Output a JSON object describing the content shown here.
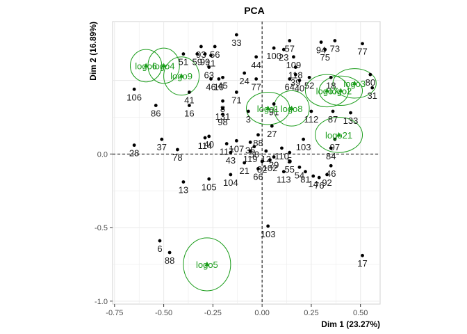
{
  "chart_data": {
    "type": "scatter",
    "title": "PCA",
    "xlabel": "Dim 1 (23.27%)",
    "ylabel": "Dim 2 (16.89%)",
    "xlim": [
      -0.76,
      0.6
    ],
    "ylim": [
      -1.02,
      0.9
    ],
    "x_ticks": [
      -0.75,
      -0.5,
      -0.25,
      0.0,
      0.25,
      0.5
    ],
    "x_tick_labels": [
      "-0.75",
      "-0.50",
      "-0.25",
      "0.00",
      "0.25",
      "0.50"
    ],
    "y_ticks": [
      -1.0,
      -0.5,
      0.0
    ],
    "y_tick_labels": [
      "-1.0",
      "-0.5",
      "0.0"
    ],
    "grid": true,
    "reference_lines": [
      0,
      0
    ],
    "colors": {
      "points": "#000000",
      "groups": "#1a9c1a",
      "grid": "#ebebeb",
      "axis": "#333333"
    },
    "points": [
      {
        "label": "33",
        "x": -0.13,
        "y": 0.81
      },
      {
        "label": "57",
        "x": 0.14,
        "y": 0.77
      },
      {
        "label": "73",
        "x": 0.37,
        "y": 0.77
      },
      {
        "label": "77",
        "x": 0.51,
        "y": 0.75
      },
      {
        "label": "94",
        "x": 0.3,
        "y": 0.76
      },
      {
        "label": "93",
        "x": -0.31,
        "y": 0.73
      },
      {
        "label": "56",
        "x": -0.24,
        "y": 0.73
      },
      {
        "label": "100",
        "x": 0.06,
        "y": 0.72
      },
      {
        "label": "23",
        "x": 0.11,
        "y": 0.71
      },
      {
        "label": "75",
        "x": 0.32,
        "y": 0.71
      },
      {
        "label": "109",
        "x": 0.16,
        "y": 0.66
      },
      {
        "label": "44",
        "x": -0.03,
        "y": 0.66
      },
      {
        "label": "51",
        "x": -0.4,
        "y": 0.68
      },
      {
        "label": "59",
        "x": -0.33,
        "y": 0.68
      },
      {
        "label": "99",
        "x": -0.29,
        "y": 0.68
      },
      {
        "label": "11",
        "x": -0.26,
        "y": 0.67
      },
      {
        "label": "63",
        "x": -0.27,
        "y": 0.59
      },
      {
        "label": "118",
        "x": 0.17,
        "y": 0.59
      },
      {
        "label": "80",
        "x": 0.55,
        "y": 0.54
      },
      {
        "label": "24",
        "x": -0.09,
        "y": 0.55
      },
      {
        "label": "39",
        "x": 0.17,
        "y": 0.54
      },
      {
        "label": "52",
        "x": 0.24,
        "y": 0.52
      },
      {
        "label": "18",
        "x": 0.35,
        "y": 0.52
      },
      {
        "label": "45",
        "x": -0.2,
        "y": 0.52
      },
      {
        "label": "46",
        "x": -0.26,
        "y": 0.51
      },
      {
        "label": "10",
        "x": -0.22,
        "y": 0.51
      },
      {
        "label": "64",
        "x": 0.14,
        "y": 0.51
      },
      {
        "label": "40",
        "x": 0.19,
        "y": 0.5
      },
      {
        "label": "77",
        "x": -0.03,
        "y": 0.51
      },
      {
        "label": "31",
        "x": 0.56,
        "y": 0.45
      },
      {
        "label": "106",
        "x": -0.65,
        "y": 0.44
      },
      {
        "label": "71",
        "x": -0.13,
        "y": 0.42
      },
      {
        "label": "41",
        "x": -0.37,
        "y": 0.42
      },
      {
        "label": "91",
        "x": 0.06,
        "y": 0.34
      },
      {
        "label": "8",
        "x": -0.2,
        "y": 0.36
      },
      {
        "label": "16",
        "x": -0.37,
        "y": 0.33
      },
      {
        "label": "86",
        "x": -0.54,
        "y": 0.33
      },
      {
        "label": "131",
        "x": -0.2,
        "y": 0.31
      },
      {
        "label": "3",
        "x": -0.07,
        "y": 0.29
      },
      {
        "label": "112",
        "x": 0.25,
        "y": 0.29
      },
      {
        "label": "87",
        "x": 0.36,
        "y": 0.29
      },
      {
        "label": "98",
        "x": -0.2,
        "y": 0.27
      },
      {
        "label": "27",
        "x": 0.05,
        "y": 0.19
      },
      {
        "label": "133",
        "x": 0.45,
        "y": 0.28
      },
      {
        "label": "88",
        "x": -0.02,
        "y": 0.13
      },
      {
        "label": "40",
        "x": -0.27,
        "y": 0.12
      },
      {
        "label": "114",
        "x": -0.29,
        "y": 0.11
      },
      {
        "label": "37",
        "x": -0.51,
        "y": 0.1
      },
      {
        "label": "28",
        "x": -0.65,
        "y": 0.06
      },
      {
        "label": "78",
        "x": -0.43,
        "y": 0.03
      },
      {
        "label": "117",
        "x": -0.18,
        "y": 0.07
      },
      {
        "label": "107",
        "x": -0.13,
        "y": 0.09
      },
      {
        "label": "35",
        "x": -0.06,
        "y": 0.08
      },
      {
        "label": "58",
        "x": -0.04,
        "y": 0.05
      },
      {
        "label": "119",
        "x": -0.06,
        "y": 0.02
      },
      {
        "label": "43",
        "x": -0.16,
        "y": 0.01
      },
      {
        "label": "103",
        "x": 0.21,
        "y": 0.1
      },
      {
        "label": "97",
        "x": 0.37,
        "y": 0.1
      },
      {
        "label": "84",
        "x": 0.35,
        "y": 0.04
      },
      {
        "label": "110",
        "x": 0.1,
        "y": 0.04
      },
      {
        "label": "12",
        "x": 0.02,
        "y": 0.02
      },
      {
        "label": "5",
        "x": 0.14,
        "y": 0.01
      },
      {
        "label": "29",
        "x": 0.06,
        "y": -0.02
      },
      {
        "label": "102",
        "x": 0.04,
        "y": -0.04
      },
      {
        "label": "82",
        "x": 0.0,
        "y": -0.05
      },
      {
        "label": "55",
        "x": 0.14,
        "y": -0.05
      },
      {
        "label": "21",
        "x": -0.09,
        "y": -0.06
      },
      {
        "label": "66",
        "x": -0.02,
        "y": -0.1
      },
      {
        "label": "46",
        "x": 0.35,
        "y": -0.08
      },
      {
        "label": "54",
        "x": 0.19,
        "y": -0.09
      },
      {
        "label": "113",
        "x": 0.11,
        "y": -0.12
      },
      {
        "label": "81",
        "x": 0.22,
        "y": -0.12
      },
      {
        "label": "92",
        "x": 0.33,
        "y": -0.14
      },
      {
        "label": "14",
        "x": 0.26,
        "y": -0.15
      },
      {
        "label": "76",
        "x": 0.29,
        "y": -0.16
      },
      {
        "label": "104",
        "x": -0.16,
        "y": -0.14
      },
      {
        "label": "105",
        "x": -0.27,
        "y": -0.17
      },
      {
        "label": "13",
        "x": -0.4,
        "y": -0.19
      },
      {
        "label": "103",
        "x": 0.03,
        "y": -0.49
      },
      {
        "label": "6",
        "x": -0.52,
        "y": -0.59
      },
      {
        "label": "88",
        "x": -0.47,
        "y": -0.67
      },
      {
        "label": "17",
        "x": 0.51,
        "y": -0.69
      }
    ],
    "groups": [
      {
        "label": "logo6",
        "x": -0.59,
        "y": 0.72,
        "ellipse": {
          "rx": 0.08,
          "ry": 0.11,
          "cy": 0.6
        }
      },
      {
        "label": "logo4",
        "x": -0.5,
        "y": 0.72,
        "ellipse": {
          "rx": 0.08,
          "ry": 0.12,
          "cy": 0.6
        }
      },
      {
        "label": "logo9",
        "x": -0.41,
        "y": 0.61,
        "ellipse": {
          "rx": 0.09,
          "ry": 0.13,
          "cy": 0.53
        }
      },
      {
        "label": "logo1",
        "x": 0.03,
        "y": 0.35,
        "ellipse": {
          "rx": 0.11,
          "ry": 0.11,
          "cy": 0.31
        }
      },
      {
        "label": "logo8",
        "x": 0.15,
        "y": 0.35,
        "ellipse": {
          "rx": 0.09,
          "ry": 0.12,
          "cy": 0.31
        }
      },
      {
        "label": "logo3",
        "x": 0.47,
        "y": 0.52,
        "ellipse": {
          "rx": 0.11,
          "ry": 0.1,
          "cy": 0.48
        }
      },
      {
        "label": "logo2",
        "x": 0.4,
        "y": 0.48,
        "ellipse": {
          "rx": 0.11,
          "ry": 0.1,
          "cy": 0.43
        }
      },
      {
        "label": "logo7",
        "x": 0.33,
        "y": 0.46,
        "ellipse": {
          "rx": 0.11,
          "ry": 0.11,
          "cy": 0.43
        }
      },
      {
        "label": "logo21",
        "x": 0.39,
        "y": 0.08,
        "ellipse": {
          "rx": 0.12,
          "ry": 0.12,
          "cy": 0.13
        }
      },
      {
        "label": "logo5",
        "x": -0.28,
        "y": -0.79,
        "ellipse": {
          "rx": 0.12,
          "ry": 0.18,
          "cy": -0.75
        }
      }
    ]
  }
}
